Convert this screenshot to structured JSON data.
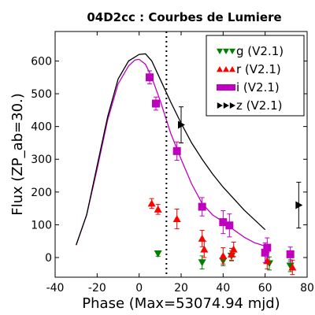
{
  "chart_data": {
    "type": "scatter",
    "title": "04D2cc : Courbes de Lumiere",
    "xlabel": "Phase (Max=53074.94 mjd)",
    "ylabel": "Flux (ZP_ab=30.)",
    "xlim": [
      -40,
      80
    ],
    "ylim": [
      -60,
      690
    ],
    "xticks": [
      -40,
      -20,
      0,
      20,
      40,
      60,
      80
    ],
    "yticks": [
      0,
      100,
      200,
      300,
      400,
      500,
      600
    ],
    "max_phase_line_x": 13,
    "legend": {
      "position": "top-right"
    },
    "series": [
      {
        "name": "g (V2.1)",
        "marker": "triangle-down",
        "color": "#007f00",
        "points": [
          {
            "x": 9,
            "y": 12,
            "err": 8
          },
          {
            "x": 30,
            "y": -15,
            "err": 20
          },
          {
            "x": 40,
            "y": -10,
            "err": 15
          },
          {
            "x": 44,
            "y": 5,
            "err": 15
          },
          {
            "x": 62,
            "y": -18,
            "err": 20
          },
          {
            "x": 72,
            "y": -25,
            "err": 18
          }
        ]
      },
      {
        "name": "r (V2.1)",
        "marker": "triangle-up",
        "color": "#ff0000",
        "points": [
          {
            "x": 6,
            "y": 165,
            "err": 15
          },
          {
            "x": 9,
            "y": 147,
            "err": 15
          },
          {
            "x": 18,
            "y": 118,
            "err": 30
          },
          {
            "x": 30,
            "y": 58,
            "err": 25
          },
          {
            "x": 31,
            "y": 25,
            "err": 25
          },
          {
            "x": 40,
            "y": 5,
            "err": 25
          },
          {
            "x": 44,
            "y": 10,
            "err": 18
          },
          {
            "x": 45,
            "y": 25,
            "err": 22
          },
          {
            "x": 61,
            "y": -10,
            "err": 25
          },
          {
            "x": 73,
            "y": -30,
            "err": 22
          }
        ]
      },
      {
        "name": "i (V2.1)",
        "marker": "square",
        "color": "#bf00bf",
        "points": [
          {
            "x": 5,
            "y": 550,
            "err": 20
          },
          {
            "x": 8,
            "y": 470,
            "err": 20
          },
          {
            "x": 18,
            "y": 325,
            "err": 28
          },
          {
            "x": 30,
            "y": 155,
            "err": 28
          },
          {
            "x": 40,
            "y": 108,
            "err": 35
          },
          {
            "x": 43,
            "y": 98,
            "err": 35
          },
          {
            "x": 60,
            "y": 15,
            "err": 30
          },
          {
            "x": 61,
            "y": 30,
            "err": 30
          },
          {
            "x": 72,
            "y": 10,
            "err": 22
          }
        ],
        "model_curve": [
          [
            -30,
            38
          ],
          [
            -25,
            130
          ],
          [
            -20,
            270
          ],
          [
            -15,
            420
          ],
          [
            -10,
            530
          ],
          [
            -5,
            585
          ],
          [
            -2,
            603
          ],
          [
            0,
            605
          ],
          [
            3,
            590
          ],
          [
            6,
            550
          ],
          [
            10,
            480
          ],
          [
            15,
            380
          ],
          [
            20,
            300
          ],
          [
            25,
            225
          ],
          [
            30,
            165
          ],
          [
            35,
            130
          ],
          [
            40,
            110
          ],
          [
            45,
            85
          ],
          [
            50,
            62
          ],
          [
            55,
            45
          ],
          [
            60,
            35
          ]
        ]
      },
      {
        "name": "z (V2.1)",
        "marker": "triangle-right",
        "color": "#000000",
        "points": [
          {
            "x": 20,
            "y": 405,
            "err": 55
          },
          {
            "x": 76,
            "y": 160,
            "err": 70
          }
        ],
        "model_curve": [
          [
            -30,
            38
          ],
          [
            -25,
            130
          ],
          [
            -20,
            280
          ],
          [
            -15,
            430
          ],
          [
            -10,
            545
          ],
          [
            -5,
            600
          ],
          [
            0,
            620
          ],
          [
            3,
            622
          ],
          [
            6,
            600
          ],
          [
            10,
            545
          ],
          [
            15,
            475
          ],
          [
            20,
            410
          ],
          [
            25,
            350
          ],
          [
            30,
            300
          ],
          [
            35,
            255
          ],
          [
            40,
            215
          ],
          [
            45,
            180
          ],
          [
            50,
            145
          ],
          [
            55,
            115
          ],
          [
            60,
            85
          ]
        ]
      }
    ]
  }
}
